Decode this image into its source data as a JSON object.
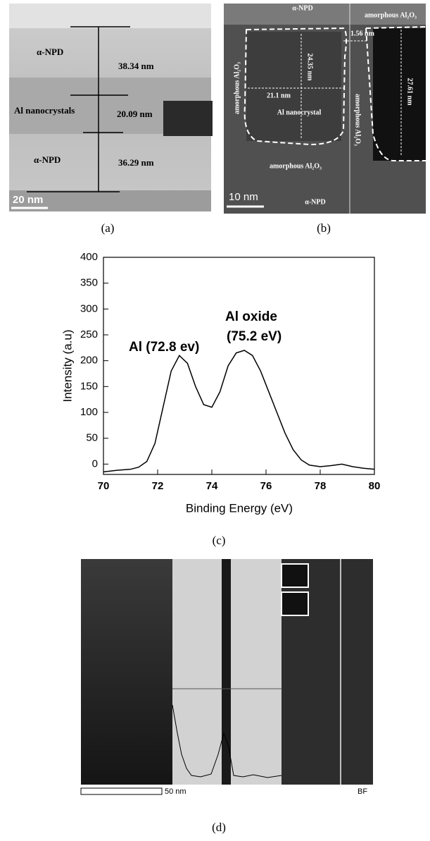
{
  "panel_a": {
    "labels": [
      "α-NPD",
      "38.34 nm",
      "Al nanocrystals",
      "20.09 nm",
      "α-NPD",
      "36.29 nm"
    ],
    "scale_bar": "20 nm",
    "caption": "(a)"
  },
  "panel_b": {
    "labels": [
      "α-NPD",
      "amorphous Al₂O₃",
      "1.56 nm",
      "24.35 nm",
      "21.1 nm",
      "Al nanocrystal",
      "27.61 nm",
      "amorphous Al₂O₃",
      "amorphous Al₂O₃",
      "amorphous Al₂O₃",
      "α-NPD"
    ],
    "scale_bar": "10 nm",
    "caption": "(b)"
  },
  "chart_data": {
    "type": "line",
    "x_label": "Binding Energy (eV)",
    "y_label": "Intensity (a.u)",
    "annotations": [
      "Al (72.8 ev)",
      "Al  oxide",
      "(75.2 eV)"
    ],
    "x": [
      70,
      70.5,
      71,
      71.3,
      71.6,
      71.9,
      72.2,
      72.5,
      72.8,
      73.1,
      73.4,
      73.7,
      74,
      74.3,
      74.6,
      74.9,
      75.2,
      75.5,
      75.8,
      76.1,
      76.4,
      76.7,
      77,
      77.3,
      77.6,
      78,
      78.4,
      78.8,
      79.2,
      79.6,
      80
    ],
    "values": [
      -15,
      -12,
      -10,
      -6,
      5,
      40,
      110,
      180,
      210,
      195,
      150,
      115,
      110,
      140,
      190,
      215,
      220,
      210,
      180,
      140,
      100,
      60,
      28,
      8,
      -2,
      -5,
      -3,
      0,
      -5,
      -8,
      -10
    ],
    "color": "#000000",
    "xlim": [
      70,
      80
    ],
    "xticks": [
      70,
      72,
      74,
      76,
      78,
      80
    ],
    "ylim": [
      -20,
      400
    ],
    "yticks": [
      0,
      50,
      100,
      150,
      200,
      250,
      300,
      350,
      400
    ],
    "caption": "(c)"
  },
  "panel_d": {
    "scale_bar": "50 nm",
    "mode": "BF",
    "caption": "(d)"
  }
}
